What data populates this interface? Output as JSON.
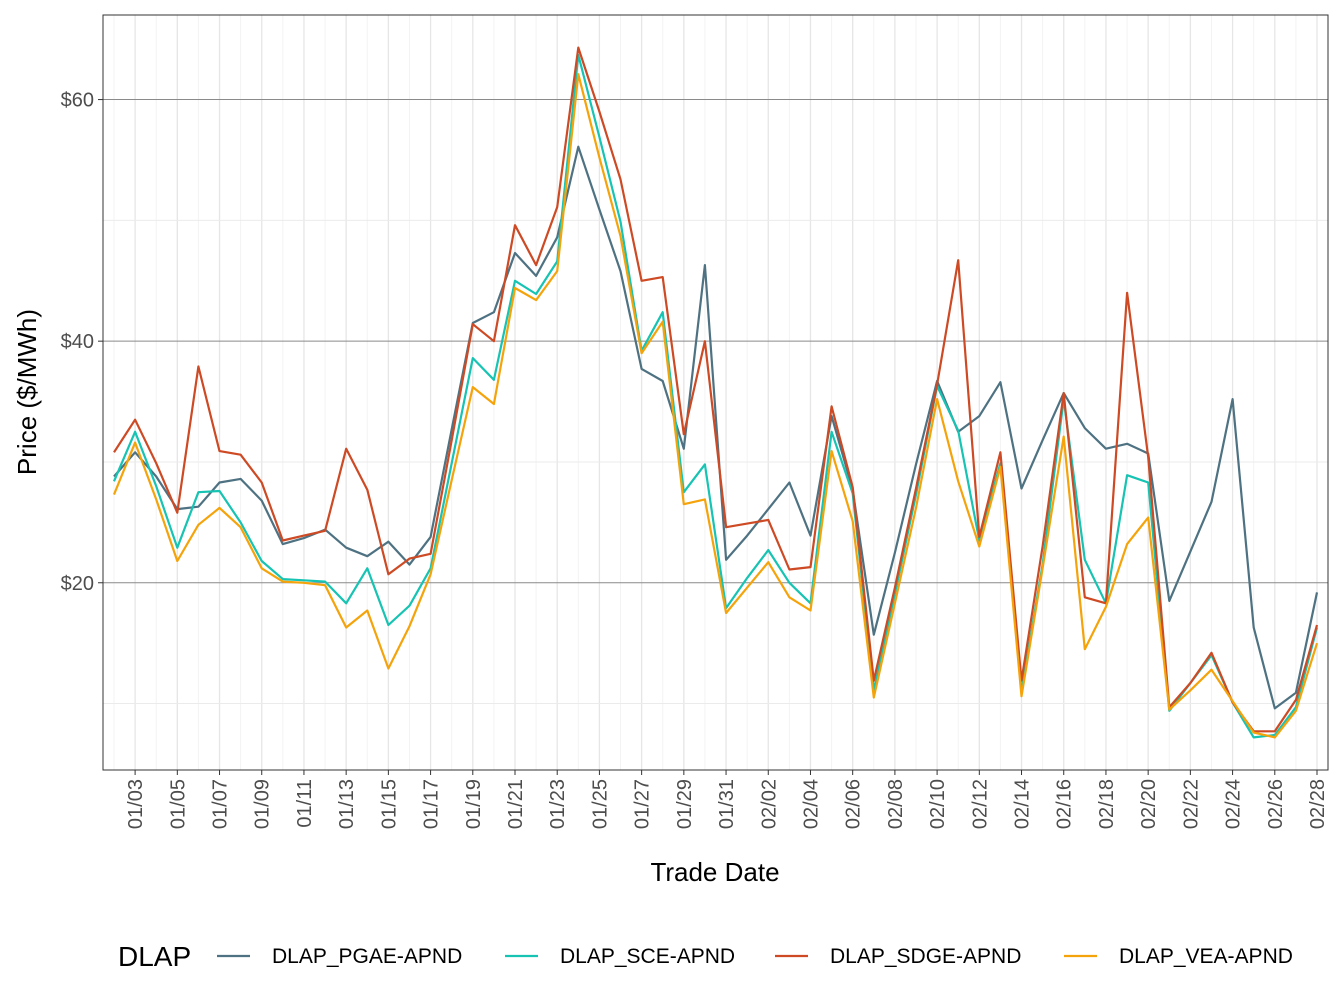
{
  "chart_data": {
    "type": "line",
    "x_label": "Trade Date",
    "y_label": "Price ($/MWh)",
    "legend_title": "DLAP",
    "legend_position": "bottom",
    "categories": [
      null,
      "01/03",
      null,
      "01/05",
      null,
      "01/07",
      null,
      "01/09",
      null,
      "01/11",
      null,
      "01/13",
      null,
      "01/15",
      null,
      "01/17",
      null,
      "01/19",
      null,
      "01/21",
      null,
      "01/23",
      null,
      "01/25",
      null,
      "01/27",
      null,
      "01/29",
      null,
      "01/31",
      null,
      "02/02",
      null,
      "02/04",
      null,
      "02/06",
      null,
      "02/08",
      null,
      "02/10",
      null,
      "02/12",
      null,
      "02/14",
      null,
      "02/16",
      null,
      "02/18",
      null,
      "02/20",
      null,
      "02/22",
      null,
      "02/24",
      null,
      "02/26",
      null,
      "02/28"
    ],
    "ylim": [
      4.5,
      67
    ],
    "yticks": [
      {
        "value": 20,
        "label": "$20"
      },
      {
        "value": 40,
        "label": "$40"
      },
      {
        "value": 60,
        "label": "$60"
      }
    ],
    "y_minor_gridlines": [
      10,
      30,
      50
    ],
    "grid": true,
    "series": [
      {
        "name": "DLAP_PGAE-APND",
        "color": "#4e7282",
        "values": [
          28.8,
          30.8,
          28.8,
          26.1,
          26.3,
          28.3,
          28.6,
          26.8,
          23.2,
          23.7,
          24.4,
          22.9,
          22.2,
          23.4,
          21.5,
          23.8,
          32.7,
          41.5,
          42.4,
          47.3,
          45.4,
          48.6,
          56.1,
          50.9,
          45.8,
          37.7,
          36.7,
          31.1,
          46.3,
          21.9,
          23.9,
          26.1,
          28.3,
          23.9,
          33.8,
          27.7,
          15.7,
          22.5,
          29.8,
          36.7,
          32.5,
          33.8,
          36.6,
          27.8,
          31.8,
          35.7,
          32.8,
          31.1,
          31.5,
          30.7,
          18.5,
          22.6,
          26.7,
          35.2,
          16.3,
          9.6,
          10.9,
          19.2
        ]
      },
      {
        "name": "DLAP_SCE-APND",
        "color": "#17c3b2",
        "values": [
          28.4,
          32.5,
          28.0,
          22.9,
          27.5,
          27.6,
          25.0,
          21.8,
          20.3,
          20.2,
          20.1,
          18.3,
          21.2,
          16.5,
          18.1,
          21.2,
          29.9,
          38.6,
          36.8,
          45.0,
          43.9,
          46.6,
          63.7,
          56.9,
          49.9,
          39.2,
          42.4,
          27.5,
          29.8,
          17.9,
          20.4,
          22.7,
          20.0,
          18.3,
          32.5,
          27.4,
          11.1,
          19.1,
          27.3,
          36.3,
          32.6,
          23.5,
          29.9,
          11.0,
          21.5,
          35.2,
          21.9,
          18.3,
          28.9,
          28.3,
          9.4,
          11.7,
          14.0,
          10.1,
          7.2,
          7.4,
          9.7,
          16.3
        ]
      },
      {
        "name": "DLAP_SDGE-APND",
        "color": "#cd4a24",
        "values": [
          30.8,
          33.5,
          29.9,
          25.8,
          37.9,
          30.9,
          30.6,
          28.3,
          23.5,
          23.9,
          24.3,
          31.1,
          27.7,
          20.7,
          22.0,
          22.4,
          31.8,
          41.4,
          40.0,
          49.6,
          46.3,
          51.1,
          64.3,
          59.0,
          53.4,
          45.0,
          45.3,
          32.3,
          40.0,
          24.6,
          24.9,
          25.2,
          21.1,
          21.3,
          34.6,
          27.9,
          11.9,
          19.6,
          27.8,
          36.4,
          46.7,
          23.8,
          30.8,
          11.9,
          23.0,
          35.7,
          18.8,
          18.3,
          44.0,
          30.4,
          9.7,
          11.7,
          14.2,
          10.1,
          7.7,
          7.7,
          10.3,
          16.5
        ]
      },
      {
        "name": "DLAP_VEA-APND",
        "color": "#f5a30a",
        "values": [
          27.3,
          31.6,
          26.9,
          21.8,
          24.8,
          26.2,
          24.6,
          21.2,
          20.1,
          20.0,
          19.8,
          16.3,
          17.7,
          12.9,
          16.4,
          20.7,
          28.5,
          36.2,
          34.8,
          44.4,
          43.4,
          45.8,
          62.1,
          55.2,
          48.7,
          39.0,
          41.6,
          26.5,
          26.9,
          17.5,
          19.6,
          21.7,
          18.8,
          17.7,
          30.9,
          25.1,
          10.5,
          18.3,
          26.2,
          35.2,
          28.4,
          23.0,
          29.6,
          10.6,
          21.2,
          32.1,
          14.5,
          18.0,
          23.2,
          25.4,
          9.5,
          11.1,
          12.8,
          10.2,
          7.6,
          7.2,
          9.4,
          15.0
        ]
      }
    ]
  }
}
